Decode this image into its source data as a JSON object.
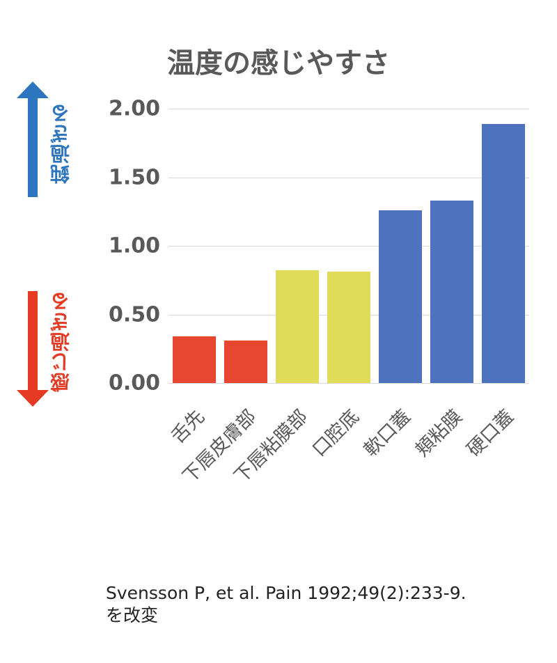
{
  "chart_data": {
    "type": "bar",
    "title": "温度の感じやすさ",
    "categories": [
      "舌先",
      "下唇皮膚部",
      "下唇粘膜部",
      "口腔底",
      "軟口蓋",
      "頬粘膜",
      "硬口蓋"
    ],
    "values": [
      0.34,
      0.31,
      0.82,
      0.81,
      1.26,
      1.33,
      1.89
    ],
    "bar_colors": [
      "#e8472f",
      "#e8472f",
      "#e0dc58",
      "#e0dc58",
      "#4e73be",
      "#4e73be",
      "#4e73be"
    ],
    "xlabel": "",
    "ylabel": "",
    "ylim": [
      0,
      2.0
    ],
    "yticks": [
      "0.00",
      "0.50",
      "1.00",
      "1.50",
      "2.00"
    ],
    "grid": true,
    "legend": null,
    "annotations": [
      {
        "text": "鈍過ぎる",
        "direction": "up",
        "color": "#2e75c0"
      },
      {
        "text": "感じ過ぎる",
        "direction": "down",
        "color": "#e53b24"
      }
    ]
  },
  "side_labels": {
    "up": "鈍過ぎる",
    "down": "感じ過ぎる",
    "up_color": "#2e75c0",
    "down_color": "#e53b24"
  },
  "citation": {
    "line1": "Svensson P, et al. Pain 1992;49(2):233-9.",
    "line2": "を改変"
  }
}
